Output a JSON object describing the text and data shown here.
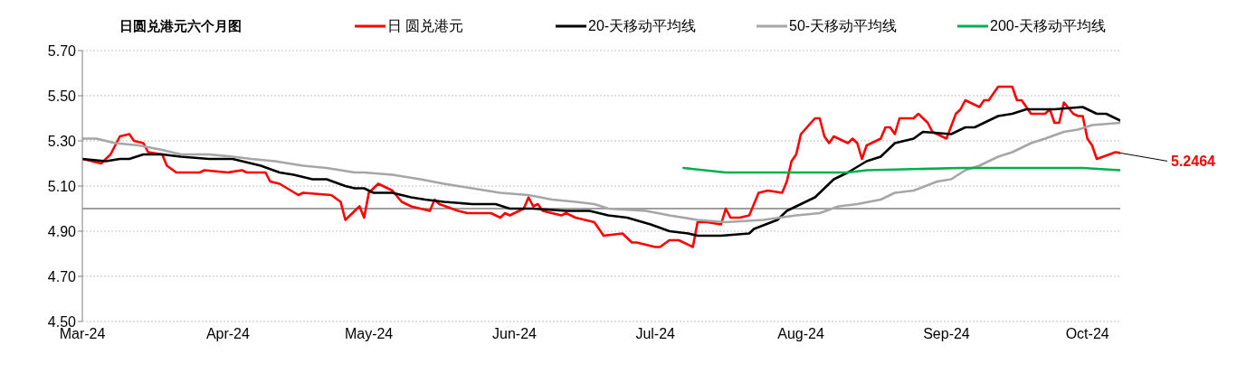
{
  "chart_data": {
    "type": "line",
    "title": "日圆兑港元六个月图",
    "legend": "top",
    "grid": "y",
    "marker": "none",
    "line_style": "solid",
    "xlim": [
      "2024-03-01",
      "2024-10-08"
    ],
    "xticks": [
      {
        "value": "2024-03-01",
        "label": "Mar-24"
      },
      {
        "value": "2024-04-01",
        "label": "Apr-24"
      },
      {
        "value": "2024-05-01",
        "label": "May-24"
      },
      {
        "value": "2024-06-01",
        "label": "Jun-24"
      },
      {
        "value": "2024-07-01",
        "label": "Jul-24"
      },
      {
        "value": "2024-08-01",
        "label": "Aug-24"
      },
      {
        "value": "2024-09-01",
        "label": "Sep-24"
      },
      {
        "value": "2024-10-01",
        "label": "Oct-24"
      }
    ],
    "ylim": [
      4.5,
      5.7
    ],
    "yticks": [
      {
        "value": 4.5,
        "label": "4.50"
      },
      {
        "value": 4.7,
        "label": "4.70"
      },
      {
        "value": 4.9,
        "label": "4.90"
      },
      {
        "value": 5.1,
        "label": "5.10"
      },
      {
        "value": 5.3,
        "label": "5.30"
      },
      {
        "value": 5.5,
        "label": "5.50"
      },
      {
        "value": 5.7,
        "label": "5.70"
      }
    ],
    "ref_lines": [
      {
        "axis": "y",
        "value": 5.0,
        "label": null,
        "color": "#808080",
        "line_style": "solid"
      }
    ],
    "annotations": [
      {
        "text": "5.2464",
        "x": "2024-10-08",
        "y": 5.2464
      }
    ],
    "series": [
      {
        "name": "日 圆兑港元",
        "color": "#ff0000",
        "x": [
          "2024-03-01",
          "2024-03-05",
          "2024-03-07",
          "2024-03-09",
          "2024-03-11",
          "2024-03-12",
          "2024-03-14",
          "2024-03-15",
          "2024-03-18",
          "2024-03-19",
          "2024-03-21",
          "2024-03-23",
          "2024-03-26",
          "2024-03-27",
          "2024-04-01",
          "2024-04-04",
          "2024-04-05",
          "2024-04-09",
          "2024-04-10",
          "2024-04-12",
          "2024-04-16",
          "2024-04-17",
          "2024-04-23",
          "2024-04-25",
          "2024-04-26",
          "2024-04-29",
          "2024-04-30",
          "2024-05-01",
          "2024-05-03",
          "2024-05-06",
          "2024-05-08",
          "2024-05-09",
          "2024-05-10",
          "2024-05-14",
          "2024-05-15",
          "2024-05-16",
          "2024-05-20",
          "2024-05-22",
          "2024-05-27",
          "2024-05-29",
          "2024-05-30",
          "2024-05-31",
          "2024-06-03",
          "2024-06-04",
          "2024-06-05",
          "2024-06-06",
          "2024-06-07",
          "2024-06-11",
          "2024-06-12",
          "2024-06-14",
          "2024-06-18",
          "2024-06-20",
          "2024-06-24",
          "2024-06-26",
          "2024-06-27",
          "2024-07-01",
          "2024-07-02",
          "2024-07-04",
          "2024-07-06",
          "2024-07-09",
          "2024-07-10",
          "2024-07-12",
          "2024-07-15",
          "2024-07-16",
          "2024-07-17",
          "2024-07-19",
          "2024-07-21",
          "2024-07-23",
          "2024-07-25",
          "2024-07-28",
          "2024-07-29",
          "2024-07-30",
          "2024-07-31",
          "2024-08-01",
          "2024-08-04",
          "2024-08-05",
          "2024-08-06",
          "2024-08-07",
          "2024-08-08",
          "2024-08-11",
          "2024-08-12",
          "2024-08-13",
          "2024-08-14",
          "2024-08-15",
          "2024-08-18",
          "2024-08-19",
          "2024-08-20",
          "2024-08-21",
          "2024-08-22",
          "2024-08-25",
          "2024-08-26",
          "2024-08-28",
          "2024-08-29",
          "2024-09-01",
          "2024-09-03",
          "2024-09-04",
          "2024-09-05",
          "2024-09-08",
          "2024-09-09",
          "2024-09-10",
          "2024-09-12",
          "2024-09-15",
          "2024-09-16",
          "2024-09-17",
          "2024-09-19",
          "2024-09-22",
          "2024-09-23",
          "2024-09-24",
          "2024-09-25",
          "2024-09-26",
          "2024-09-28",
          "2024-09-29",
          "2024-09-30",
          "2024-10-01",
          "2024-10-02",
          "2024-10-03",
          "2024-10-07",
          "2024-10-08"
        ],
        "values": [
          5.22,
          5.2,
          5.24,
          5.32,
          5.33,
          5.3,
          5.29,
          5.25,
          5.24,
          5.19,
          5.16,
          5.16,
          5.16,
          5.17,
          5.16,
          5.17,
          5.16,
          5.16,
          5.12,
          5.11,
          5.06,
          5.07,
          5.06,
          5.03,
          4.95,
          5.01,
          4.96,
          5.07,
          5.11,
          5.08,
          5.03,
          5.02,
          5.01,
          4.99,
          5.04,
          5.02,
          4.99,
          4.98,
          4.98,
          4.96,
          4.98,
          4.97,
          5.0,
          5.05,
          5.01,
          5.02,
          4.99,
          4.97,
          4.98,
          4.96,
          4.94,
          4.88,
          4.89,
          4.85,
          4.85,
          4.83,
          4.83,
          4.86,
          4.86,
          4.83,
          4.94,
          4.94,
          4.93,
          5.0,
          4.96,
          4.96,
          4.97,
          5.07,
          5.08,
          5.07,
          5.12,
          5.21,
          5.24,
          5.33,
          5.4,
          5.4,
          5.32,
          5.29,
          5.32,
          5.29,
          5.31,
          5.29,
          5.22,
          5.28,
          5.31,
          5.36,
          5.36,
          5.33,
          5.4,
          5.4,
          5.42,
          5.38,
          5.34,
          5.31,
          5.42,
          5.44,
          5.48,
          5.45,
          5.48,
          5.48,
          5.54,
          5.54,
          5.48,
          5.48,
          5.42,
          5.42,
          5.44,
          5.38,
          5.38,
          5.47,
          5.42,
          5.41,
          5.41,
          5.31,
          5.28,
          5.22,
          5.25,
          5.2464
        ]
      },
      {
        "name": "20-天移动平均线",
        "color": "#000000",
        "x": [
          "2024-03-01",
          "2024-03-06",
          "2024-03-09",
          "2024-03-11",
          "2024-03-14",
          "2024-03-18",
          "2024-03-22",
          "2024-03-28",
          "2024-04-02",
          "2024-04-06",
          "2024-04-08",
          "2024-04-12",
          "2024-04-15",
          "2024-04-19",
          "2024-04-22",
          "2024-04-26",
          "2024-04-28",
          "2024-04-30",
          "2024-05-02",
          "2024-05-06",
          "2024-05-10",
          "2024-05-13",
          "2024-05-17",
          "2024-05-23",
          "2024-05-28",
          "2024-05-31",
          "2024-06-05",
          "2024-06-12",
          "2024-06-17",
          "2024-06-21",
          "2024-06-25",
          "2024-06-30",
          "2024-07-04",
          "2024-07-08",
          "2024-07-10",
          "2024-07-15",
          "2024-07-21",
          "2024-07-22",
          "2024-07-27",
          "2024-07-29",
          "2024-08-01",
          "2024-08-04",
          "2024-08-08",
          "2024-08-11",
          "2024-08-15",
          "2024-08-18",
          "2024-08-21",
          "2024-08-25",
          "2024-08-27",
          "2024-09-02",
          "2024-09-05",
          "2024-09-07",
          "2024-09-12",
          "2024-09-15",
          "2024-09-18",
          "2024-09-24",
          "2024-09-30",
          "2024-10-03",
          "2024-10-05",
          "2024-10-08"
        ],
        "values": [
          5.22,
          5.21,
          5.22,
          5.22,
          5.24,
          5.24,
          5.23,
          5.22,
          5.22,
          5.2,
          5.19,
          5.16,
          5.15,
          5.13,
          5.13,
          5.1,
          5.09,
          5.09,
          5.07,
          5.07,
          5.05,
          5.04,
          5.03,
          5.02,
          5.02,
          5.0,
          5.0,
          4.99,
          4.99,
          4.97,
          4.96,
          4.93,
          4.9,
          4.89,
          4.88,
          4.88,
          4.89,
          4.91,
          4.95,
          4.99,
          5.02,
          5.05,
          5.13,
          5.16,
          5.21,
          5.23,
          5.29,
          5.31,
          5.34,
          5.33,
          5.36,
          5.36,
          5.41,
          5.42,
          5.44,
          5.44,
          5.45,
          5.42,
          5.42,
          5.39
        ]
      },
      {
        "name": "50-天移动平均线",
        "color": "#a6a6a6",
        "x": [
          "2024-03-01",
          "2024-03-04",
          "2024-03-08",
          "2024-03-13",
          "2024-03-18",
          "2024-03-22",
          "2024-03-28",
          "2024-04-02",
          "2024-04-06",
          "2024-04-11",
          "2024-04-17",
          "2024-04-22",
          "2024-04-28",
          "2024-04-30",
          "2024-05-06",
          "2024-05-12",
          "2024-05-17",
          "2024-05-23",
          "2024-05-29",
          "2024-06-04",
          "2024-06-09",
          "2024-06-14",
          "2024-06-18",
          "2024-06-21",
          "2024-06-29",
          "2024-07-04",
          "2024-07-10",
          "2024-07-16",
          "2024-07-24",
          "2024-07-31",
          "2024-08-05",
          "2024-08-09",
          "2024-08-13",
          "2024-08-18",
          "2024-08-21",
          "2024-08-25",
          "2024-08-30",
          "2024-09-02",
          "2024-09-05",
          "2024-09-08",
          "2024-09-12",
          "2024-09-15",
          "2024-09-19",
          "2024-09-22",
          "2024-09-26",
          "2024-09-29",
          "2024-10-02",
          "2024-10-08"
        ],
        "values": [
          5.31,
          5.31,
          5.29,
          5.28,
          5.26,
          5.24,
          5.24,
          5.23,
          5.22,
          5.21,
          5.19,
          5.18,
          5.16,
          5.16,
          5.15,
          5.13,
          5.11,
          5.09,
          5.07,
          5.06,
          5.04,
          5.03,
          5.02,
          5.0,
          4.99,
          4.97,
          4.95,
          4.94,
          4.95,
          4.97,
          4.98,
          5.01,
          5.02,
          5.04,
          5.07,
          5.08,
          5.12,
          5.13,
          5.17,
          5.19,
          5.23,
          5.25,
          5.29,
          5.31,
          5.34,
          5.35,
          5.37,
          5.38
        ]
      },
      {
        "name": "200-天移动平均线",
        "color": "#00b050",
        "x": [
          "2024-07-07",
          "2024-07-16",
          "2024-07-29",
          "2024-08-11",
          "2024-08-15",
          "2024-09-04",
          "2024-09-18",
          "2024-09-30",
          "2024-10-08"
        ],
        "values": [
          5.18,
          5.16,
          5.16,
          5.16,
          5.17,
          5.18,
          5.18,
          5.18,
          5.17
        ]
      }
    ]
  }
}
